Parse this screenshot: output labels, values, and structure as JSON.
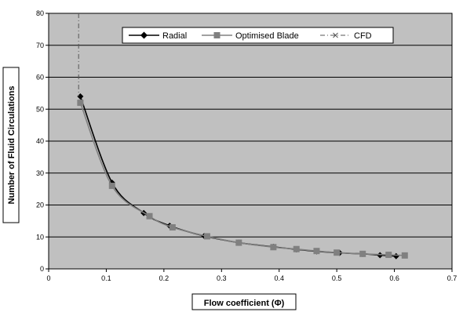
{
  "chart_data": {
    "type": "line",
    "title": "",
    "xlabel": "Flow coefficient (Φ)",
    "ylabel": "Number of Fluid Circulations",
    "xlim": [
      0,
      0.7
    ],
    "ylim": [
      0,
      80
    ],
    "x_ticks": [
      "0",
      "0.1",
      "0.2",
      "0.3",
      "0.4",
      "0.5",
      "0.6",
      "0.7"
    ],
    "y_ticks": [
      "0",
      "10",
      "20",
      "30",
      "40",
      "50",
      "60",
      "70",
      "80"
    ],
    "grid": "horizontal",
    "plot_background": "#c0c0c0",
    "legend_position": "top-right",
    "series": [
      {
        "name": "Radial",
        "marker": "diamond",
        "color": "#000000",
        "x": [
          0.055,
          0.11,
          0.165,
          0.21,
          0.27,
          0.33,
          0.39,
          0.43,
          0.465,
          0.505,
          0.545,
          0.575,
          0.603
        ],
        "y": [
          54,
          27,
          17.5,
          13.5,
          10.3,
          8.2,
          6.9,
          6.1,
          5.5,
          5.0,
          4.7,
          4.3,
          4.0
        ]
      },
      {
        "name": "Optimised Blade",
        "marker": "square",
        "color": "#808080",
        "x": [
          0.055,
          0.11,
          0.175,
          0.215,
          0.275,
          0.33,
          0.39,
          0.43,
          0.465,
          0.5,
          0.545,
          0.59,
          0.618
        ],
        "y": [
          52,
          26,
          16.5,
          13,
          10.2,
          8.2,
          6.8,
          6.2,
          5.6,
          5.1,
          4.7,
          4.4,
          4.2
        ]
      },
      {
        "name": "CFD",
        "marker": "x",
        "color": "#555555",
        "dash": true,
        "x": [
          0.052,
          0.052
        ],
        "y": [
          80,
          54
        ]
      }
    ]
  }
}
